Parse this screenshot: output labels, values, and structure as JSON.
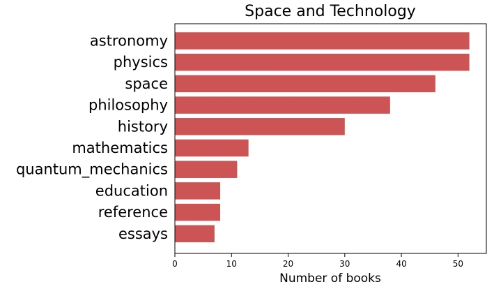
{
  "chart_data": {
    "type": "bar",
    "orientation": "horizontal",
    "title": "Space and Technology",
    "xlabel": "Number of books",
    "ylabel": "",
    "categories": [
      "astronomy",
      "physics",
      "space",
      "philosophy",
      "history",
      "mathematics",
      "quantum_mechanics",
      "education",
      "reference",
      "essays"
    ],
    "values": [
      52,
      52,
      46,
      38,
      30,
      13,
      11,
      8,
      8,
      7
    ],
    "xlim": [
      0,
      55
    ],
    "xticks": [
      0,
      10,
      20,
      30,
      40,
      50
    ],
    "grid": false,
    "bar_color": "#cd5454"
  }
}
